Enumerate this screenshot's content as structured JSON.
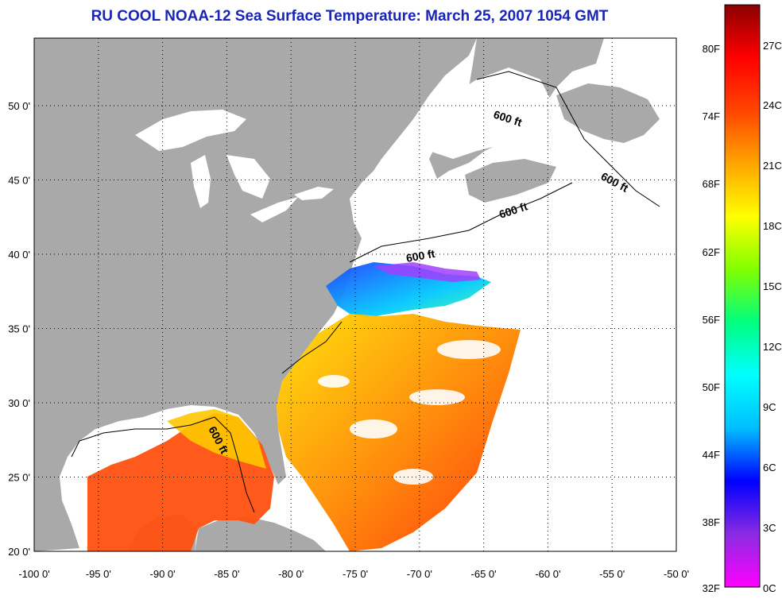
{
  "title": "RU COOL  NOAA-12  Sea Surface Temperature:  March 25, 2007 1054 GMT",
  "map": {
    "x_ticks": [
      "-100 0'",
      "-95 0'",
      "-90 0'",
      "-85 0'",
      "-80 0'",
      "-75 0'",
      "-70 0'",
      "-65 0'",
      "-60 0'",
      "-55 0'",
      "-50 0'"
    ],
    "y_ticks": [
      "50 0'",
      "45 0'",
      "40 0'",
      "35 0'",
      "30 0'",
      "25 0'",
      "20 0'"
    ],
    "contour_labels": [
      "600 ft",
      "600 ft",
      "600 ft",
      "600 ft",
      "600 ft"
    ],
    "colors": {
      "land": "#a9a9a9",
      "ocean_nodata": "#ffffff",
      "grid": "#000000"
    }
  },
  "colorbar": {
    "fahrenheit": [
      "80F",
      "74F",
      "68F",
      "62F",
      "56F",
      "50F",
      "44F",
      "38F",
      "32F"
    ],
    "celsius": [
      "27C",
      "24C",
      "21C",
      "18C",
      "15C",
      "12C",
      "9C",
      "6C",
      "3C",
      "0C"
    ],
    "gradient": [
      "#ff00ff",
      "#8a2be2",
      "#0000ff",
      "#00bfff",
      "#00ffff",
      "#00ff80",
      "#80ff00",
      "#ffff00",
      "#ffa500",
      "#ff4500",
      "#ff0000",
      "#8b0000"
    ]
  }
}
